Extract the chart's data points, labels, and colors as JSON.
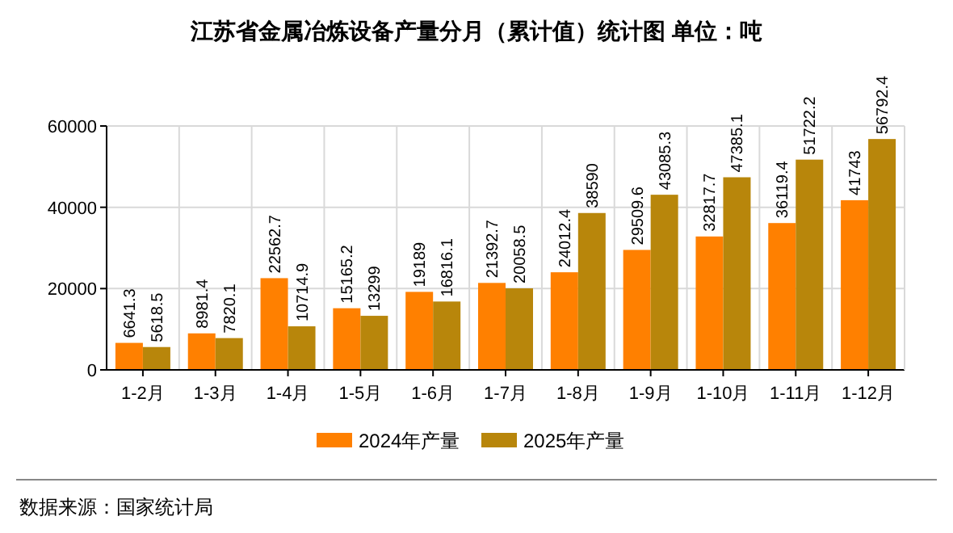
{
  "chart_data": {
    "type": "bar",
    "title": "江苏省金属冶炼设备产量分月（累计值）统计图 单位：吨",
    "categories": [
      "1-2月",
      "1-3月",
      "1-4月",
      "1-5月",
      "1-6月",
      "1-7月",
      "1-8月",
      "1-9月",
      "1-10月",
      "1-11月",
      "1-12月"
    ],
    "series": [
      {
        "name": "2024年产量",
        "color": "#ff8000",
        "values": [
          6641.3,
          8981.4,
          22562.7,
          15165.2,
          19189,
          21392.7,
          24012.4,
          29509.6,
          32817.7,
          36119.4,
          41743
        ]
      },
      {
        "name": "2025年产量",
        "color": "#b8860b",
        "values": [
          5618.5,
          7820.1,
          10714.9,
          13299,
          16816.1,
          20058.5,
          38590,
          43085.3,
          47385.1,
          51722.2,
          56792.4
        ]
      }
    ],
    "ylim": [
      0,
      60000
    ],
    "yticks": [
      0,
      20000,
      40000,
      60000
    ],
    "grid": true,
    "legend": "bottom",
    "data_labels": true,
    "annotations": [
      "数据来源：国家统计局"
    ]
  }
}
